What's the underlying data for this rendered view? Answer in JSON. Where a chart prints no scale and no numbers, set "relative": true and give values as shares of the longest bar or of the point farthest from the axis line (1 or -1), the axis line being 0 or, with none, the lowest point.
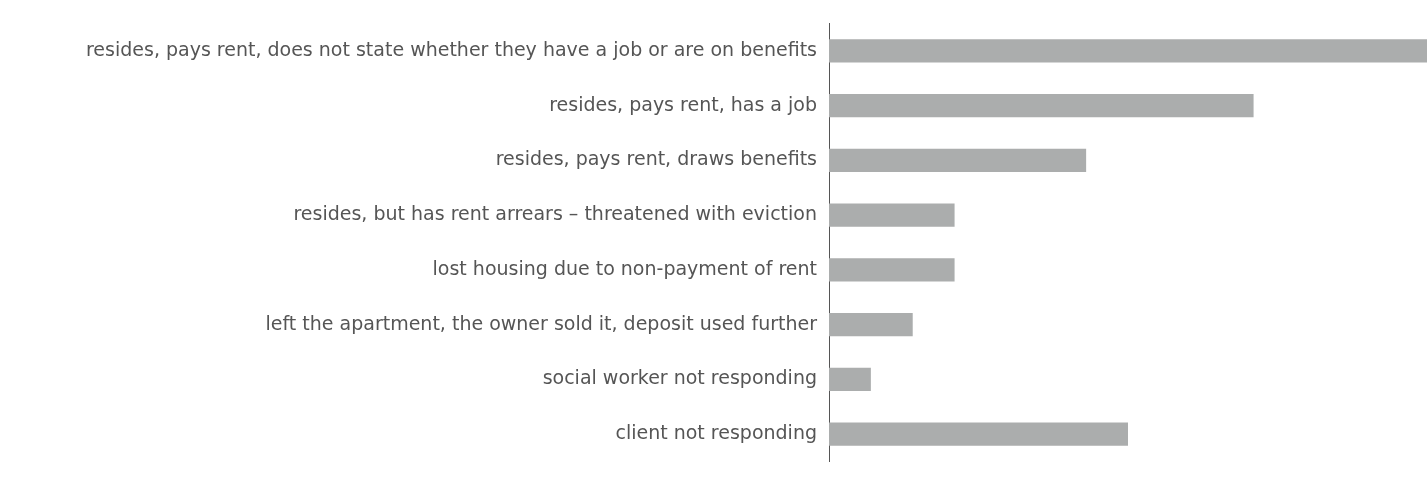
{
  "chart_data": {
    "type": "bar",
    "orientation": "horizontal",
    "relative": true,
    "color": "#abadad",
    "categories": [
      "resides, pays rent, does not state whether they have a job or are on benefits",
      "resides, pays rent, has a job",
      "resides, pays rent, draws benefits",
      "resides, but has rent arrears – threatened with eviction",
      "lost housing due to non-payment of rent",
      "left the apartment, the owner sold it, deposit used further",
      "social worker not responding",
      "client not responding"
    ],
    "values": [
      1,
      0.71,
      0.43,
      0.21,
      0.21,
      0.14,
      0.07,
      0.5
    ]
  }
}
